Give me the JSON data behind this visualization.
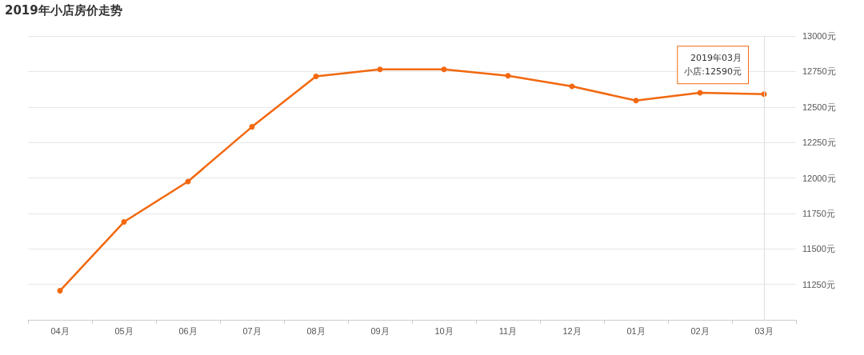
{
  "chart_data": {
    "type": "line",
    "title": "2019年小店房价走势",
    "categories": [
      "04月",
      "05月",
      "06月",
      "07月",
      "08月",
      "09月",
      "10月",
      "11月",
      "12月",
      "01月",
      "02月",
      "03月"
    ],
    "series": [
      {
        "color": "#f2680f",
        "values": [
          11205,
          11690,
          11975,
          12360,
          12715,
          12765,
          12765,
          12720,
          12645,
          12545,
          12600,
          12590
        ]
      }
    ],
    "ylim": [
      11000,
      13000
    ],
    "yticks": [
      {
        "value": 11250,
        "label": "11250元"
      },
      {
        "value": 11500,
        "label": "11500元"
      },
      {
        "value": 11750,
        "label": "11750元"
      },
      {
        "value": 12000,
        "label": "12000元"
      },
      {
        "value": 12250,
        "label": "12250元"
      },
      {
        "value": 12500,
        "label": "12500元"
      },
      {
        "value": 12750,
        "label": "12750元"
      },
      {
        "value": 13000,
        "label": "13000元"
      }
    ],
    "grid": "y",
    "marker": "circle",
    "ref_lines": [
      {
        "axis": "x",
        "value": "03月",
        "color": "#dddddd"
      }
    ],
    "annotations": [
      "2019年03月",
      "小店:12590元"
    ]
  }
}
